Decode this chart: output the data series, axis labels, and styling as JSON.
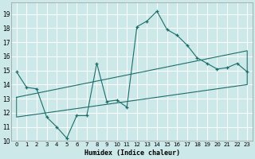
{
  "xlabel": "Humidex (Indice chaleur)",
  "xlim": [
    -0.5,
    23.5
  ],
  "ylim": [
    10,
    19.8
  ],
  "yticks": [
    10,
    11,
    12,
    13,
    14,
    15,
    16,
    17,
    18,
    19
  ],
  "xticks": [
    0,
    1,
    2,
    3,
    4,
    5,
    6,
    7,
    8,
    9,
    10,
    11,
    12,
    13,
    14,
    15,
    16,
    17,
    18,
    19,
    20,
    21,
    22,
    23
  ],
  "bg_color": "#cce8e8",
  "grid_color": "#ffffff",
  "line_color": "#1a6e6a",
  "main_x": [
    0,
    1,
    2,
    3,
    4,
    5,
    6,
    7,
    8,
    9,
    10,
    11,
    12,
    13,
    14,
    15,
    16,
    17,
    18,
    19,
    20,
    21,
    22,
    23
  ],
  "main_y": [
    14.9,
    13.8,
    13.7,
    11.7,
    11.0,
    10.2,
    11.8,
    11.8,
    15.5,
    12.8,
    12.9,
    12.4,
    18.1,
    18.5,
    19.2,
    17.9,
    17.5,
    16.8,
    15.9,
    15.5,
    15.1,
    15.2,
    15.5,
    14.9
  ],
  "upper_line_x": [
    0,
    23
  ],
  "upper_line_y": [
    13.1,
    16.4
  ],
  "lower_line_x": [
    0,
    23
  ],
  "lower_line_y": [
    11.7,
    14.0
  ],
  "para_x": [
    0,
    23,
    23,
    0,
    0
  ],
  "para_y": [
    13.1,
    16.4,
    14.0,
    11.7,
    13.1
  ]
}
